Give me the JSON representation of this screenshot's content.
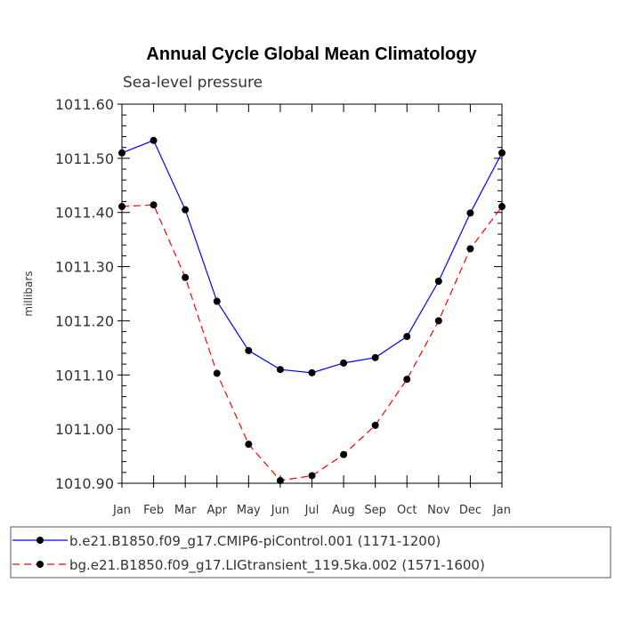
{
  "chart_data": {
    "type": "line",
    "title": "Annual Cycle Global Mean Climatology",
    "subtitle": "Sea-level pressure",
    "xlabel": "",
    "ylabel": "millibars",
    "categories": [
      "Jan",
      "Feb",
      "Mar",
      "Apr",
      "May",
      "Jun",
      "Jul",
      "Aug",
      "Sep",
      "Oct",
      "Nov",
      "Dec",
      "Jan"
    ],
    "ylim": [
      1010.9,
      1011.6
    ],
    "yticks": [
      "1011.60",
      "1011.50",
      "1011.40",
      "1011.30",
      "1011.20",
      "1011.10",
      "1011.00",
      "1010.90"
    ],
    "ytick_values": [
      1011.6,
      1011.5,
      1011.4,
      1011.3,
      1011.2,
      1011.1,
      1011.0,
      1010.9
    ],
    "series": [
      {
        "name": "b.e21.B1850.f09_g17.CMIP6-piControl.001 (1171-1200)",
        "color": "#0000ff",
        "dash": "solid",
        "values": [
          1011.51,
          1011.533,
          1011.405,
          1011.236,
          1011.145,
          1011.11,
          1011.104,
          1011.122,
          1011.132,
          1011.171,
          1011.273,
          1011.399,
          1011.51
        ]
      },
      {
        "name": "bg.e21.B1850.f09_g17.LIGtransient_119.5ka.002 (1571-1600)",
        "color": "#ff0000",
        "dash": "dashed",
        "values": [
          1011.411,
          1011.414,
          1011.28,
          1011.103,
          1010.972,
          1010.905,
          1010.914,
          1010.953,
          1011.007,
          1011.092,
          1011.2,
          1011.333,
          1011.411
        ]
      }
    ],
    "legend_position": "bottom"
  }
}
